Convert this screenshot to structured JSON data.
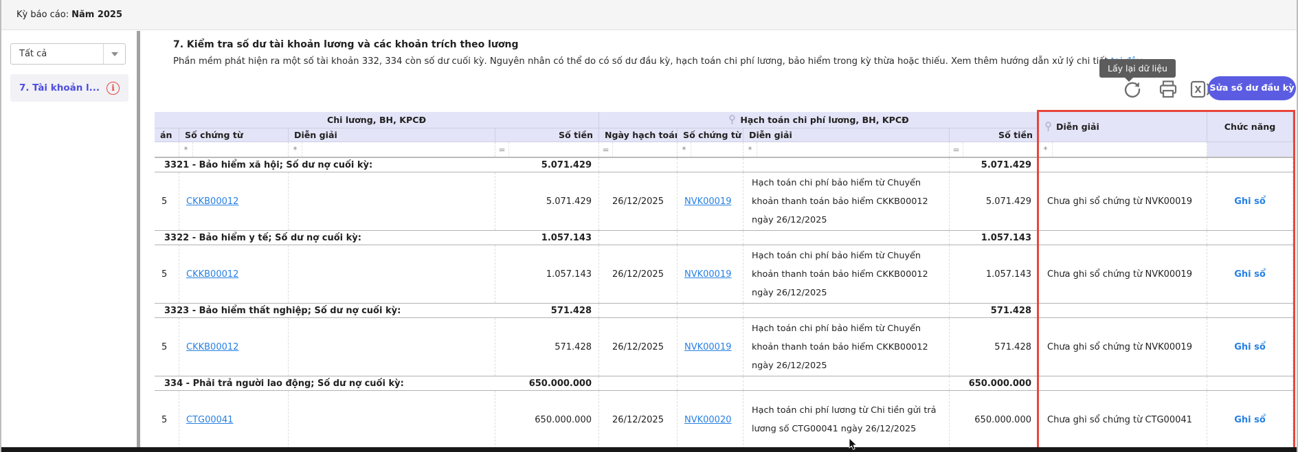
{
  "colors": {
    "accent_red": "#e8453c",
    "link_blue": "#2680e3",
    "button_indigo": "#5b5ce2",
    "header_lavender": "#e4e4f8",
    "sidebar_item_text": "#4d4de0"
  },
  "topbar": {
    "label": "Kỳ báo cáo:",
    "value": "Năm 2025"
  },
  "sidebar": {
    "filter": {
      "value": "Tất cả",
      "arrow_icon": "chevron-down-icon"
    },
    "items": [
      {
        "label": "7. Tài khoản l...",
        "warning_icon": "info-icon",
        "warning_glyph": "i"
      }
    ]
  },
  "content": {
    "title": "7. Kiểm tra số dư tài khoản lương và các khoản trích theo lương",
    "description": "Phần mềm phát hiện ra một số tài khoản 332, 334 còn số dư cuối kỳ. Nguyên nhân có thể do có số dư đầu kỳ, hạch toán chi phí lương, bảo hiểm trong kỳ thừa hoặc thiếu. Xem thêm hướng dẫn xử lý chi tiết ",
    "help_link": "tại đây",
    "description_suffix": ".",
    "tooltip": "Lấy lại dữ liệu",
    "toolbar_icons": [
      "refresh-icon",
      "print-icon",
      "excel-icon"
    ],
    "primary_button": "Sửa số dư đầu kỳ"
  },
  "table": {
    "groups": [
      {
        "label": "Chi lương, BH, KPCĐ"
      },
      {
        "label": "Hạch toán chi phí lương, BH, KPCĐ",
        "pin_icon": true
      }
    ],
    "columns": [
      "án",
      "Số chứng từ",
      "Diễn giải",
      "Số tiền",
      "Ngày hạch toán",
      "Số chứng từ",
      "Diễn giải",
      "Số tiền"
    ],
    "pinned_columns": [
      {
        "label": "Diễn giải",
        "pin_icon": true
      },
      {
        "label": "Chức năng"
      }
    ],
    "filters": [
      "",
      "*",
      "*",
      "=",
      "=",
      "*",
      "*",
      "=",
      "*",
      null
    ],
    "rows": [
      {
        "type": "summary",
        "label": "3321 - Bảo hiểm xã hội; Số dư nợ cuối kỳ:",
        "amount_left": "5.071.429",
        "amount_right": "5.071.429"
      },
      {
        "type": "data",
        "date_clip": "5",
        "doc_left": "CKKB00012",
        "desc_left": "",
        "amount_left": "5.071.429",
        "posting_date": "26/12/2025",
        "doc_right": "NVK00019",
        "desc_right": "Hạch toán chi phí bảo hiểm từ Chuyển khoản thanh toán bảo hiểm CKKB00012 ngày 26/12/2025",
        "amount_right": "5.071.429",
        "note": "Chưa ghi sổ chứng từ NVK00019",
        "action": "Ghi sổ"
      },
      {
        "type": "summary",
        "label": "3322 - Bảo hiểm y tế; Số dư nợ cuối kỳ:",
        "amount_left": "1.057.143",
        "amount_right": "1.057.143"
      },
      {
        "type": "data",
        "date_clip": "5",
        "doc_left": "CKKB00012",
        "desc_left": "",
        "amount_left": "1.057.143",
        "posting_date": "26/12/2025",
        "doc_right": "NVK00019",
        "desc_right": "Hạch toán chi phí bảo hiểm từ Chuyển khoản thanh toán bảo hiểm CKKB00012 ngày 26/12/2025",
        "amount_right": "1.057.143",
        "note": "Chưa ghi sổ chứng từ NVK00019",
        "action": "Ghi sổ"
      },
      {
        "type": "summary",
        "label": "3323 - Bảo hiểm thất nghiệp; Số dư nợ cuối kỳ:",
        "amount_left": "571.428",
        "amount_right": "571.428"
      },
      {
        "type": "data",
        "date_clip": "5",
        "doc_left": "CKKB00012",
        "desc_left": "",
        "amount_left": "571.428",
        "posting_date": "26/12/2025",
        "doc_right": "NVK00019",
        "desc_right": "Hạch toán chi phí bảo hiểm từ Chuyển khoản thanh toán bảo hiểm CKKB00012 ngày 26/12/2025",
        "amount_right": "571.428",
        "note": "Chưa ghi sổ chứng từ NVK00019",
        "action": "Ghi sổ"
      },
      {
        "type": "summary",
        "label": "334 - Phải trả người lao động; Số dư nợ cuối kỳ:",
        "amount_left": "650.000.000",
        "amount_right": "650.000.000"
      },
      {
        "type": "data",
        "date_clip": "5",
        "doc_left": "CTG00041",
        "desc_left": "",
        "amount_left": "650.000.000",
        "posting_date": "26/12/2025",
        "doc_right": "NVK00020",
        "desc_right": "Hạch toán chi phí lương từ Chi tiền gửi trả lương số CTG00041 ngày 26/12/2025",
        "amount_right": "650.000.000",
        "note": "Chưa ghi sổ chứng từ CTG00041",
        "action": "Ghi sổ"
      }
    ]
  }
}
